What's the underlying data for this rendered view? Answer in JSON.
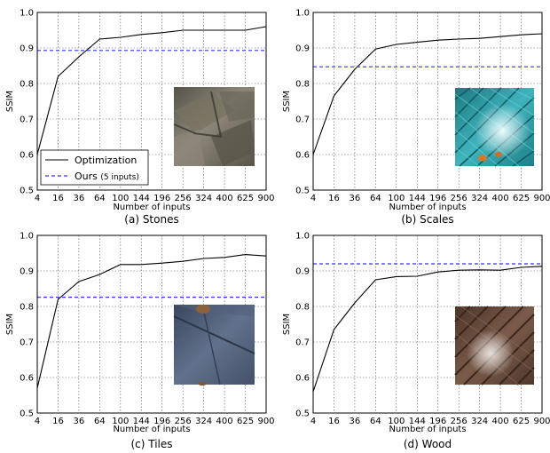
{
  "chart_data": [
    {
      "type": "line",
      "caption": "(a) Stones",
      "xlabel": "Number of inputs",
      "ylabel": "SSIM",
      "x": [
        4,
        16,
        36,
        64,
        100,
        144,
        196,
        256,
        324,
        400,
        625,
        900
      ],
      "x_tick_labels": [
        "4",
        "16",
        "36",
        "64",
        "100",
        "144",
        "196",
        "256",
        "324",
        "400",
        "625",
        "900"
      ],
      "ylim": [
        0.5,
        1.0
      ],
      "y_ticks": [
        0.5,
        0.6,
        0.7,
        0.8,
        0.9,
        1.0
      ],
      "y_tick_labels": [
        "0.5",
        "0.6",
        "0.7",
        "0.8",
        "0.9",
        "1.0"
      ],
      "grid": true,
      "series": [
        {
          "name": "Optimization",
          "color": "#000000",
          "style": "solid",
          "values": [
            0.6,
            0.82,
            0.875,
            0.925,
            0.93,
            0.938,
            0.943,
            0.95,
            0.95,
            0.95,
            0.95,
            0.96
          ]
        },
        {
          "name": "Ours",
          "name_note": "(5 inputs)",
          "color": "#3333ee",
          "style": "dashed",
          "constant": 0.893
        }
      ],
      "legend": "inside-lower-left",
      "inset": {
        "material": "stones",
        "colors": [
          "#6f6a60",
          "#8a8577",
          "#4c4840"
        ]
      }
    },
    {
      "type": "line",
      "caption": "(b) Scales",
      "xlabel": "Number of inputs",
      "ylabel": "SSIM",
      "x": [
        4,
        16,
        36,
        64,
        100,
        144,
        196,
        256,
        324,
        400,
        625,
        900
      ],
      "x_tick_labels": [
        "4",
        "16",
        "36",
        "64",
        "100",
        "144",
        "196",
        "256",
        "324",
        "400",
        "625",
        "900"
      ],
      "ylim": [
        0.5,
        1.0
      ],
      "y_ticks": [
        0.5,
        0.6,
        0.7,
        0.8,
        0.9,
        1.0
      ],
      "y_tick_labels": [
        "0.5",
        "0.6",
        "0.7",
        "0.8",
        "0.9",
        "1.0"
      ],
      "grid": true,
      "series": [
        {
          "name": "Optimization",
          "color": "#000000",
          "style": "solid",
          "values": [
            0.6,
            0.765,
            0.84,
            0.897,
            0.91,
            0.916,
            0.922,
            0.925,
            0.927,
            0.932,
            0.937,
            0.94
          ]
        },
        {
          "name": "Ours",
          "color": "#3333ee",
          "style": "dashed",
          "constant": 0.847
        }
      ],
      "inset": {
        "material": "scales",
        "colors": [
          "#1f8a93",
          "#3fb6be",
          "#e8fbff"
        ]
      }
    },
    {
      "type": "line",
      "caption": "(c) Tiles",
      "xlabel": "Number of inputs",
      "ylabel": "SSIM",
      "x": [
        4,
        16,
        36,
        64,
        100,
        144,
        196,
        256,
        324,
        400,
        625,
        900
      ],
      "x_tick_labels": [
        "4",
        "16",
        "36",
        "64",
        "100",
        "144",
        "196",
        "256",
        "324",
        "400",
        "625",
        "900"
      ],
      "ylim": [
        0.5,
        1.0
      ],
      "y_ticks": [
        0.5,
        0.6,
        0.7,
        0.8,
        0.9,
        1.0
      ],
      "y_tick_labels": [
        "0.5",
        "0.6",
        "0.7",
        "0.8",
        "0.9",
        "1.0"
      ],
      "grid": true,
      "series": [
        {
          "name": "Optimization",
          "color": "#000000",
          "style": "solid",
          "values": [
            0.57,
            0.82,
            0.87,
            0.89,
            0.918,
            0.918,
            0.922,
            0.927,
            0.935,
            0.938,
            0.946,
            0.942
          ]
        },
        {
          "name": "Ours",
          "color": "#3333ee",
          "style": "dashed",
          "constant": 0.826
        }
      ],
      "inset": {
        "material": "tiles",
        "colors": [
          "#3e4d66",
          "#5d6c85",
          "#8a5a2c"
        ]
      }
    },
    {
      "type": "line",
      "caption": "(d) Wood",
      "xlabel": "Number of inputs",
      "ylabel": "SSIM",
      "x": [
        4,
        16,
        36,
        64,
        100,
        144,
        196,
        256,
        324,
        400,
        625,
        900
      ],
      "x_tick_labels": [
        "4",
        "16",
        "36",
        "64",
        "100",
        "144",
        "196",
        "256",
        "324",
        "400",
        "625",
        "900"
      ],
      "ylim": [
        0.5,
        1.0
      ],
      "y_ticks": [
        0.5,
        0.6,
        0.7,
        0.8,
        0.9,
        1.0
      ],
      "y_tick_labels": [
        "0.5",
        "0.6",
        "0.7",
        "0.8",
        "0.9",
        "1.0"
      ],
      "grid": true,
      "series": [
        {
          "name": "Optimization",
          "color": "#000000",
          "style": "solid",
          "values": [
            0.56,
            0.735,
            0.81,
            0.875,
            0.884,
            0.885,
            0.897,
            0.902,
            0.903,
            0.902,
            0.91,
            0.913
          ]
        },
        {
          "name": "Ours",
          "color": "#3333ee",
          "style": "dashed",
          "constant": 0.92
        }
      ],
      "inset": {
        "material": "wood",
        "colors": [
          "#5a4034",
          "#7a5a48",
          "#d8d4cf"
        ]
      }
    }
  ]
}
